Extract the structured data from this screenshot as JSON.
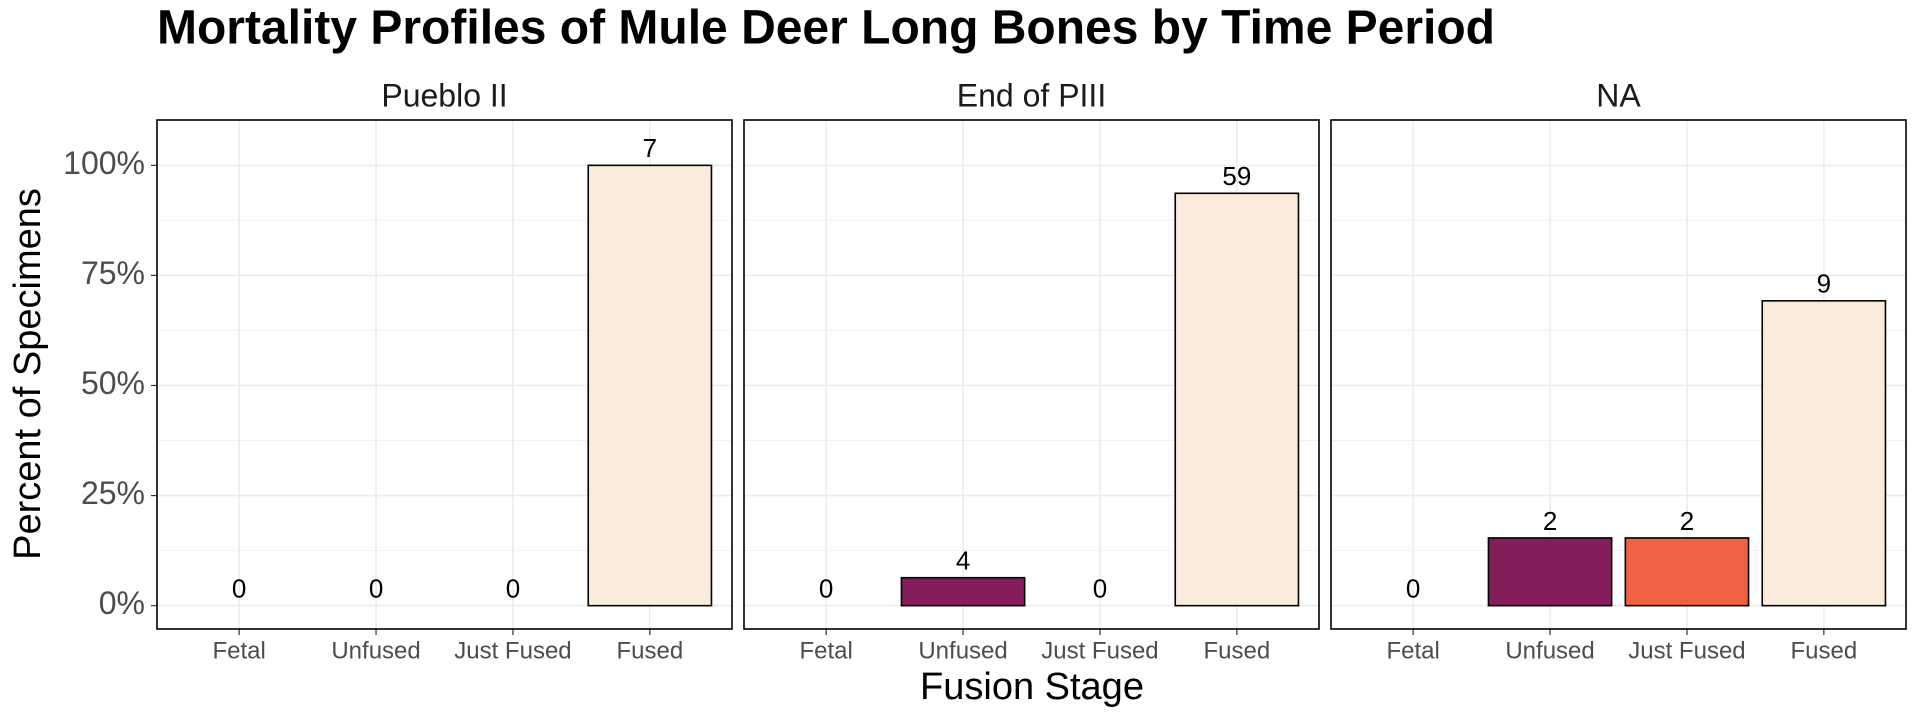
{
  "chart_data": {
    "type": "bar",
    "title": "Mortality Profiles of Mule Deer Long Bones by Time Period",
    "xlabel": "Fusion Stage",
    "ylabel": "Percent of Specimens",
    "categories": [
      "Fetal",
      "Unfused",
      "Just Fused",
      "Fused"
    ],
    "colors": [
      "#2b1a3d",
      "#841e5a",
      "#f06043",
      "#fbebda"
    ],
    "panels": [
      {
        "name": "Pueblo II",
        "values": [
          0,
          0,
          0,
          100
        ],
        "counts": [
          0,
          0,
          0,
          7
        ]
      },
      {
        "name": "End of PIII",
        "values": [
          0,
          6.35,
          0,
          93.65
        ],
        "counts": [
          0,
          4,
          0,
          59
        ]
      },
      {
        "name": "NA",
        "values": [
          0,
          15.38,
          15.38,
          69.23
        ],
        "counts": [
          0,
          2,
          2,
          9
        ]
      }
    ],
    "ylim": [
      -5.3,
      110.3
    ],
    "yticks": [
      {
        "value": 0,
        "label": "0%"
      },
      {
        "value": 25,
        "label": "25%"
      },
      {
        "value": 50,
        "label": "50%"
      },
      {
        "value": 75,
        "label": "75%"
      },
      {
        "value": 100,
        "label": "100%"
      }
    ],
    "yticks_minor": [
      12.5,
      37.5,
      62.5,
      87.5
    ],
    "grid": true
  }
}
